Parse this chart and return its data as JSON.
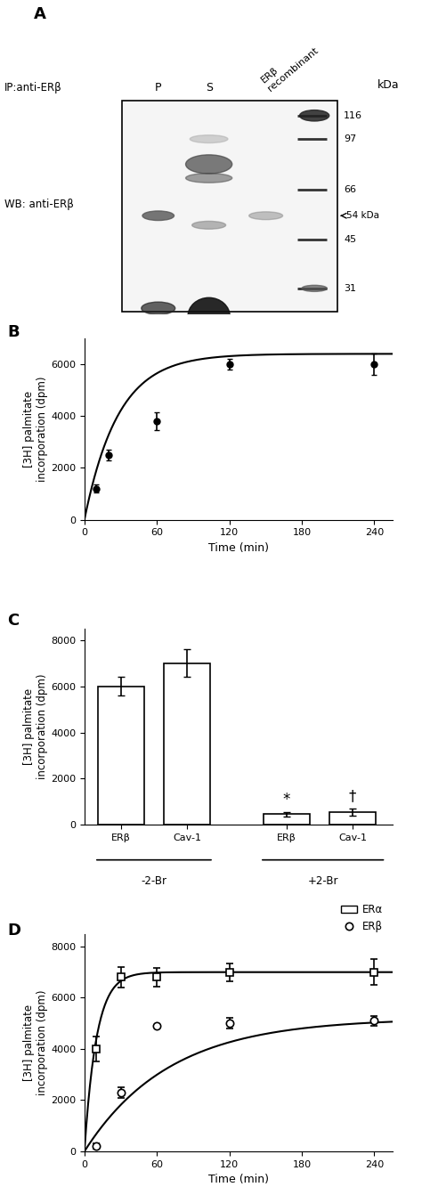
{
  "panel_A": {
    "label": "A",
    "ip_label": "IP:anti-ERβ",
    "wb_label": "WB: anti-ERβ",
    "kda_label": "kDa",
    "kda_marks": [
      116,
      97,
      66,
      45,
      31
    ],
    "arrow_label": "54 kDa"
  },
  "panel_B": {
    "label": "B",
    "x": [
      10,
      20,
      60,
      120,
      240
    ],
    "y": [
      1200,
      2500,
      3800,
      6000,
      6000
    ],
    "yerr": [
      150,
      200,
      350,
      200,
      400
    ],
    "ylabel": "[3H] palmitate\nincorporation (dpm)",
    "xlabel": "Time (min)",
    "xlim": [
      0,
      255
    ],
    "ylim": [
      0,
      7000
    ],
    "yticks": [
      0,
      2000,
      4000,
      6000
    ],
    "xticks": [
      0,
      60,
      120,
      180,
      240
    ],
    "Vmax": 6400,
    "Km": 28
  },
  "panel_C": {
    "label": "C",
    "categories": [
      "ERβ",
      "Cav-1",
      "ERβ",
      "Cav-1"
    ],
    "values": [
      6000,
      7000,
      450,
      550
    ],
    "yerr": [
      400,
      600,
      80,
      150
    ],
    "group_labels": [
      "-2-Br",
      "+2-Br"
    ],
    "ylabel": "[3H] palmitate\nincorporation (dpm)",
    "ylim": [
      0,
      8500
    ],
    "yticks": [
      0,
      2000,
      4000,
      6000,
      8000
    ]
  },
  "panel_D": {
    "label": "D",
    "x_ERa": [
      10,
      30,
      60,
      120,
      240
    ],
    "y_ERa": [
      4000,
      6800,
      6800,
      7000,
      7000
    ],
    "yerr_ERa": [
      500,
      400,
      350,
      350,
      500
    ],
    "x_ERb": [
      10,
      30,
      60,
      120,
      240
    ],
    "y_ERb": [
      200,
      2300,
      4900,
      5000,
      5100
    ],
    "yerr_ERb": [
      100,
      200,
      0,
      200,
      200
    ],
    "ylabel": "[3H] palmitate\nincorporation (dpm)",
    "xlabel": "Time (min)",
    "xlim": [
      0,
      255
    ],
    "ylim": [
      0,
      8500
    ],
    "yticks": [
      0,
      2000,
      4000,
      6000,
      8000
    ],
    "xticks": [
      0,
      60,
      120,
      180,
      240
    ],
    "legend_labels": [
      "ERα",
      "ERβ"
    ],
    "Vmax_ERa": 7000,
    "Km_ERa": 10,
    "Vmax_ERb": 5200,
    "Km_ERb": 70
  }
}
